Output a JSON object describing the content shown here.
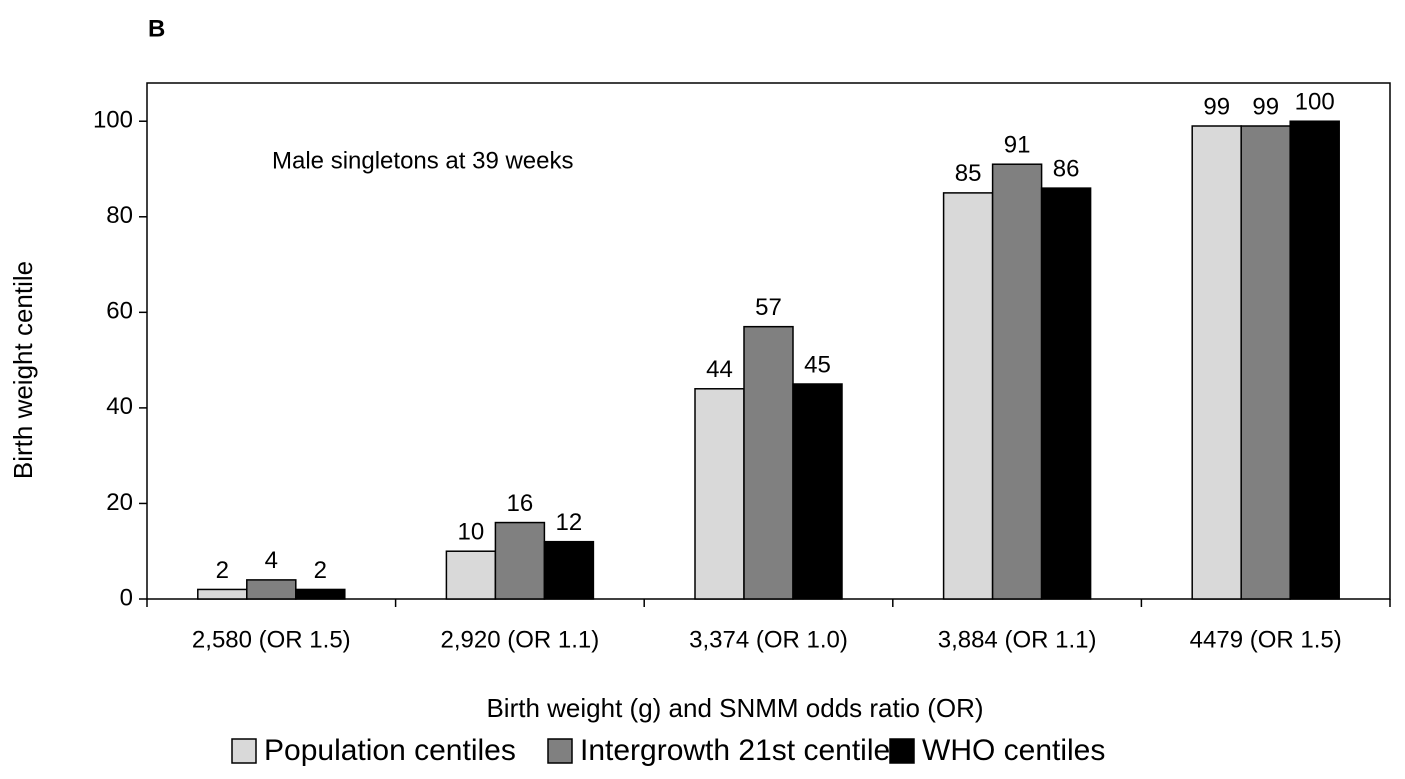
{
  "chart_data": {
    "type": "bar",
    "panel_label": "B",
    "annotation": "Male singletons at 39 weeks",
    "x_label": "Birth weight (g) and SNMM odds ratio (OR)",
    "y_label": "Birth weight centile",
    "categories": [
      "2,580 (OR 1.5)",
      "2,920 (OR 1.1)",
      "3,374 (OR 1.0)",
      "3,884 (OR 1.1)",
      "4479 (OR 1.5)"
    ],
    "series": [
      {
        "name": "Population centiles",
        "color": "#d9d9d9",
        "values": [
          2,
          10,
          44,
          85,
          99
        ]
      },
      {
        "name": "Intergrowth 21st centiles",
        "color": "#808080",
        "values": [
          4,
          16,
          57,
          91,
          99
        ]
      },
      {
        "name": "WHO centiles",
        "color": "#000000",
        "values": [
          2,
          12,
          45,
          86,
          100
        ]
      }
    ],
    "ylim": [
      0,
      108
    ],
    "yticks": [
      0,
      20,
      40,
      60,
      80,
      100
    ],
    "grid": false,
    "legend": "bottom"
  }
}
